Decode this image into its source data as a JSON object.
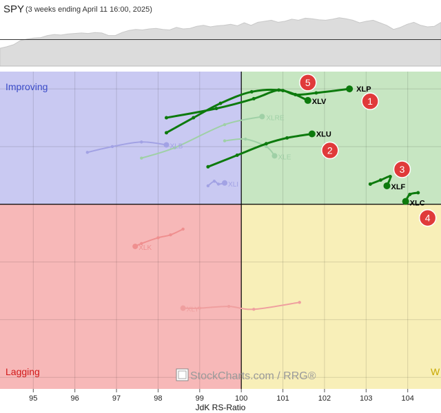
{
  "header": {
    "symbol": "SPY",
    "subtitle": "(3 weeks ending April 11 16:00, 2025)"
  },
  "quadrant_labels": {
    "improving": "Improving",
    "lagging": "Lagging",
    "weakening_partial": "W"
  },
  "watermark": "StockCharts.com / RRG®",
  "xlabel": "JdK RS-Ratio",
  "colors": {
    "improving": "#c9c9f2",
    "leading": "#c7e6c2",
    "lagging": "#f7b8b8",
    "weakening": "#f8efb8",
    "highlight": "#0d7a0d",
    "badge": "#e03a3a"
  },
  "chart_data": {
    "type": "scatter",
    "title": "SPY",
    "xlabel": "JdK RS-Ratio",
    "x_ticks": [
      "95",
      "96",
      "97",
      "98",
      "99",
      "100",
      "101",
      "102",
      "103",
      "104"
    ],
    "xlim": [
      94.2,
      104.8
    ],
    "ylim": [
      96.8,
      102.3
    ],
    "grid": true,
    "center": [
      100,
      100
    ],
    "tails": [
      {
        "name": "XLP",
        "highlight": true,
        "badge": "1",
        "points": [
          [
            98.2,
            101.5
          ],
          [
            99.4,
            101.66
          ],
          [
            100.3,
            101.83
          ],
          [
            100.9,
            101.98
          ],
          [
            101.3,
            101.9
          ],
          [
            101.8,
            101.93
          ],
          [
            102.6,
            102.0
          ]
        ]
      },
      {
        "name": "XLU",
        "highlight": true,
        "badge": "2",
        "points": [
          [
            99.2,
            100.65
          ],
          [
            99.9,
            100.85
          ],
          [
            100.6,
            101.05
          ],
          [
            101.1,
            101.15
          ],
          [
            101.7,
            101.22
          ]
        ]
      },
      {
        "name": "XLF",
        "highlight": true,
        "badge": "3",
        "points": [
          [
            103.1,
            100.35
          ],
          [
            103.35,
            100.42
          ],
          [
            103.58,
            100.48
          ],
          [
            103.5,
            100.32
          ]
        ]
      },
      {
        "name": "XLC",
        "highlight": true,
        "badge": "4",
        "points": [
          [
            104.25,
            100.2
          ],
          [
            104.05,
            100.17
          ],
          [
            103.95,
            100.05
          ]
        ]
      },
      {
        "name": "XLV",
        "highlight": true,
        "badge": "5",
        "points": [
          [
            98.2,
            101.24
          ],
          [
            98.85,
            101.5
          ],
          [
            99.5,
            101.75
          ],
          [
            100.25,
            101.95
          ],
          [
            101.0,
            101.97
          ],
          [
            101.6,
            101.8
          ]
        ]
      },
      {
        "name": "XLRE",
        "highlight": false,
        "points": [
          [
            97.6,
            100.8
          ],
          [
            98.4,
            100.98
          ],
          [
            99.6,
            101.38
          ],
          [
            100.5,
            101.52
          ]
        ]
      },
      {
        "name": "XLB",
        "highlight": false,
        "points": [
          [
            96.3,
            100.9
          ],
          [
            96.9,
            101.0
          ],
          [
            97.6,
            101.08
          ],
          [
            98.2,
            101.03
          ]
        ]
      },
      {
        "name": "XLE",
        "highlight": false,
        "points": [
          [
            99.6,
            101.1
          ],
          [
            100.1,
            101.13
          ],
          [
            100.6,
            101.0
          ],
          [
            100.8,
            100.84
          ]
        ]
      },
      {
        "name": "XLI",
        "highlight": false,
        "points": [
          [
            99.2,
            100.32
          ],
          [
            99.35,
            100.4
          ],
          [
            99.45,
            100.35
          ],
          [
            99.6,
            100.37
          ]
        ]
      },
      {
        "name": "XLK",
        "highlight": false,
        "points": [
          [
            98.6,
            99.57
          ],
          [
            98.3,
            99.47
          ],
          [
            98.0,
            99.42
          ],
          [
            97.6,
            99.32
          ],
          [
            97.45,
            99.27
          ]
        ]
      },
      {
        "name": "XLY",
        "highlight": false,
        "points": [
          [
            101.4,
            98.3
          ],
          [
            100.3,
            98.18
          ],
          [
            99.7,
            98.23
          ],
          [
            99.0,
            98.2
          ],
          [
            98.6,
            98.2
          ]
        ]
      }
    ]
  },
  "price_series": [
    0.35,
    0.38,
    0.42,
    0.5,
    0.53,
    0.55,
    0.56,
    0.6,
    0.62,
    0.61,
    0.63,
    0.64,
    0.65,
    0.64,
    0.66,
    0.65,
    0.6,
    0.6,
    0.66,
    0.7,
    0.72,
    0.71,
    0.73,
    0.74,
    0.72,
    0.71,
    0.76,
    0.73,
    0.74,
    0.78,
    0.8,
    0.77,
    0.79,
    0.8,
    0.82,
    0.79,
    0.85,
    0.8,
    0.86,
    0.88,
    0.9,
    0.86,
    0.88,
    0.92,
    0.9,
    0.94,
    0.93,
    0.91,
    0.9,
    0.92,
    0.95,
    0.93,
    0.9,
    0.85,
    0.88,
    0.9,
    0.85,
    0.8,
    0.72,
    0.76,
    0.82,
    0.86,
    0.8,
    0.77,
    0.78,
    0.86
  ]
}
